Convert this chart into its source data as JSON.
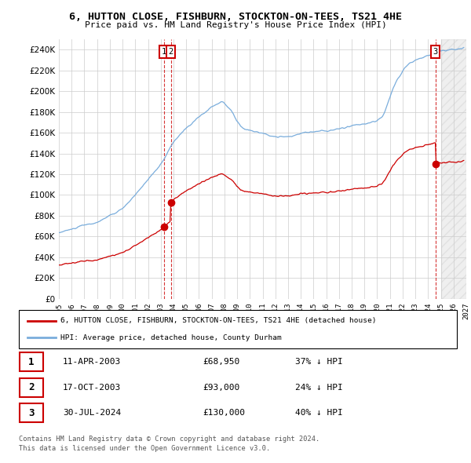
{
  "title": "6, HUTTON CLOSE, FISHBURN, STOCKTON-ON-TEES, TS21 4HE",
  "subtitle": "Price paid vs. HM Land Registry's House Price Index (HPI)",
  "red_label": "6, HUTTON CLOSE, FISHBURN, STOCKTON-ON-TEES, TS21 4HE (detached house)",
  "blue_label": "HPI: Average price, detached house, County Durham",
  "footnote1": "Contains HM Land Registry data © Crown copyright and database right 2024.",
  "footnote2": "This data is licensed under the Open Government Licence v3.0.",
  "table_rows": [
    {
      "num": "1",
      "date": "11-APR-2003",
      "price": "£68,950",
      "rel": "37% ↓ HPI"
    },
    {
      "num": "2",
      "date": "17-OCT-2003",
      "price": "£93,000",
      "rel": "24% ↓ HPI"
    },
    {
      "num": "3",
      "date": "30-JUL-2024",
      "price": "£130,000",
      "rel": "40% ↓ HPI"
    }
  ],
  "sale1_year": 2003.27,
  "sale1_price": 68950,
  "sale2_year": 2003.79,
  "sale2_price": 93000,
  "sale3_year": 2024.58,
  "sale3_price": 130000,
  "ylim": [
    0,
    250000
  ],
  "yticks": [
    0,
    20000,
    40000,
    60000,
    80000,
    100000,
    120000,
    140000,
    160000,
    180000,
    200000,
    220000,
    240000
  ],
  "xlim_start": 1995.0,
  "xlim_end": 2027.0,
  "hatch_start": 2025.0,
  "bg_color": "#ffffff",
  "grid_color": "#cccccc",
  "red_color": "#cc0000",
  "blue_color": "#7aaddc"
}
